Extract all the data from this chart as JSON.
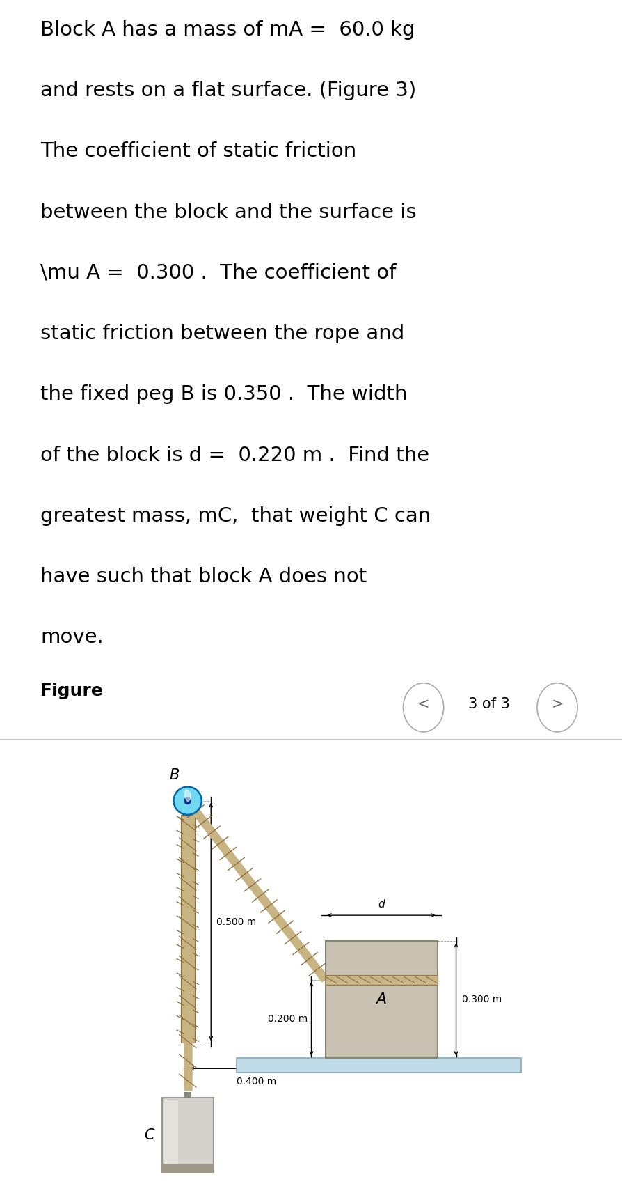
{
  "text_lines": [
    "Block A has a mass of mA =  60.0 kg",
    "and rests on a flat surface. (Figure 3)",
    "The coefficient of static friction",
    "between the block and the surface is",
    "\\mu A =  0.300 .  The coefficient of",
    "static friction between the rope and",
    "the fixed peg B is 0.350 .  The width",
    "of the block is d =  0.220 m .  Find the",
    "greatest mass, mC,  that weight C can",
    "have such that block A does not",
    "move."
  ],
  "figure_label": "Figure",
  "nav_text": "3 of 3",
  "bg_color": "#ffffff",
  "text_color": "#000000",
  "rope_color": "#c8b483",
  "rope_dark": "#8B7040",
  "block_a_color": "#c8c0b0",
  "block_a_edge": "#888870",
  "block_c_fill": "#d4d0cc",
  "block_c_edge": "#888880",
  "block_c_bottom": "#a09888",
  "surface_fill": "#c0dce8",
  "surface_edge": "#88aabb",
  "peg_fill": "#70d8f0",
  "peg_edge": "#0066aa",
  "peg_center": "#003388",
  "nav_circle_edge": "#aaaaaa",
  "nav_arrow_color": "#666666",
  "separator_color": "#cccccc",
  "ann_color": "#000000",
  "text_fontsize": 21,
  "figure_label_fontsize": 18,
  "nav_fontsize": 15,
  "ann_fontsize": 10
}
